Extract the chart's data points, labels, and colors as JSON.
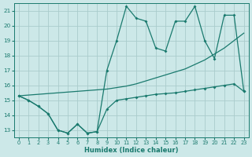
{
  "xlabel": "Humidex (Indice chaleur)",
  "bg_color": "#cce8e8",
  "grid_color": "#aacccc",
  "line_color": "#1a7a6e",
  "xlim": [
    -0.5,
    23.5
  ],
  "ylim": [
    12.5,
    21.5
  ],
  "xticks": [
    0,
    1,
    2,
    3,
    4,
    5,
    6,
    7,
    8,
    9,
    10,
    11,
    12,
    13,
    14,
    15,
    16,
    17,
    18,
    19,
    20,
    21,
    22,
    23
  ],
  "yticks": [
    13,
    14,
    15,
    16,
    17,
    18,
    19,
    20,
    21
  ],
  "line_jagged_x": [
    0,
    1,
    2,
    3,
    4,
    5,
    6,
    7,
    8,
    9,
    10,
    11,
    12,
    13,
    14,
    15,
    16,
    17,
    18,
    19,
    20,
    21,
    22,
    23
  ],
  "line_jagged_y": [
    15.3,
    15.0,
    14.6,
    14.1,
    13.0,
    12.8,
    13.4,
    12.8,
    12.9,
    14.4,
    15.0,
    15.1,
    15.2,
    15.3,
    15.4,
    15.45,
    15.5,
    15.6,
    15.7,
    15.8,
    15.9,
    16.0,
    16.1,
    15.6
  ],
  "line_top_x": [
    0,
    1,
    2,
    3,
    4,
    5,
    6,
    7,
    8,
    9,
    10,
    11,
    12,
    13,
    14,
    15,
    16,
    17,
    18,
    19,
    20,
    21,
    22,
    23
  ],
  "line_top_y": [
    15.3,
    15.0,
    14.6,
    14.1,
    13.0,
    12.8,
    13.4,
    12.8,
    12.9,
    17.0,
    19.0,
    21.3,
    20.5,
    20.3,
    18.5,
    18.3,
    20.3,
    20.3,
    21.3,
    19.0,
    17.8,
    20.7,
    20.7,
    15.6
  ],
  "line_diag_x": [
    0,
    1,
    2,
    3,
    4,
    5,
    6,
    7,
    8,
    9,
    10,
    11,
    12,
    13,
    14,
    15,
    16,
    17,
    18,
    19,
    20,
    21,
    22,
    23
  ],
  "line_diag_y": [
    15.3,
    15.35,
    15.4,
    15.45,
    15.5,
    15.55,
    15.6,
    15.65,
    15.7,
    15.75,
    15.85,
    15.95,
    16.1,
    16.3,
    16.5,
    16.7,
    16.9,
    17.1,
    17.4,
    17.7,
    18.1,
    18.5,
    19.0,
    19.5
  ]
}
